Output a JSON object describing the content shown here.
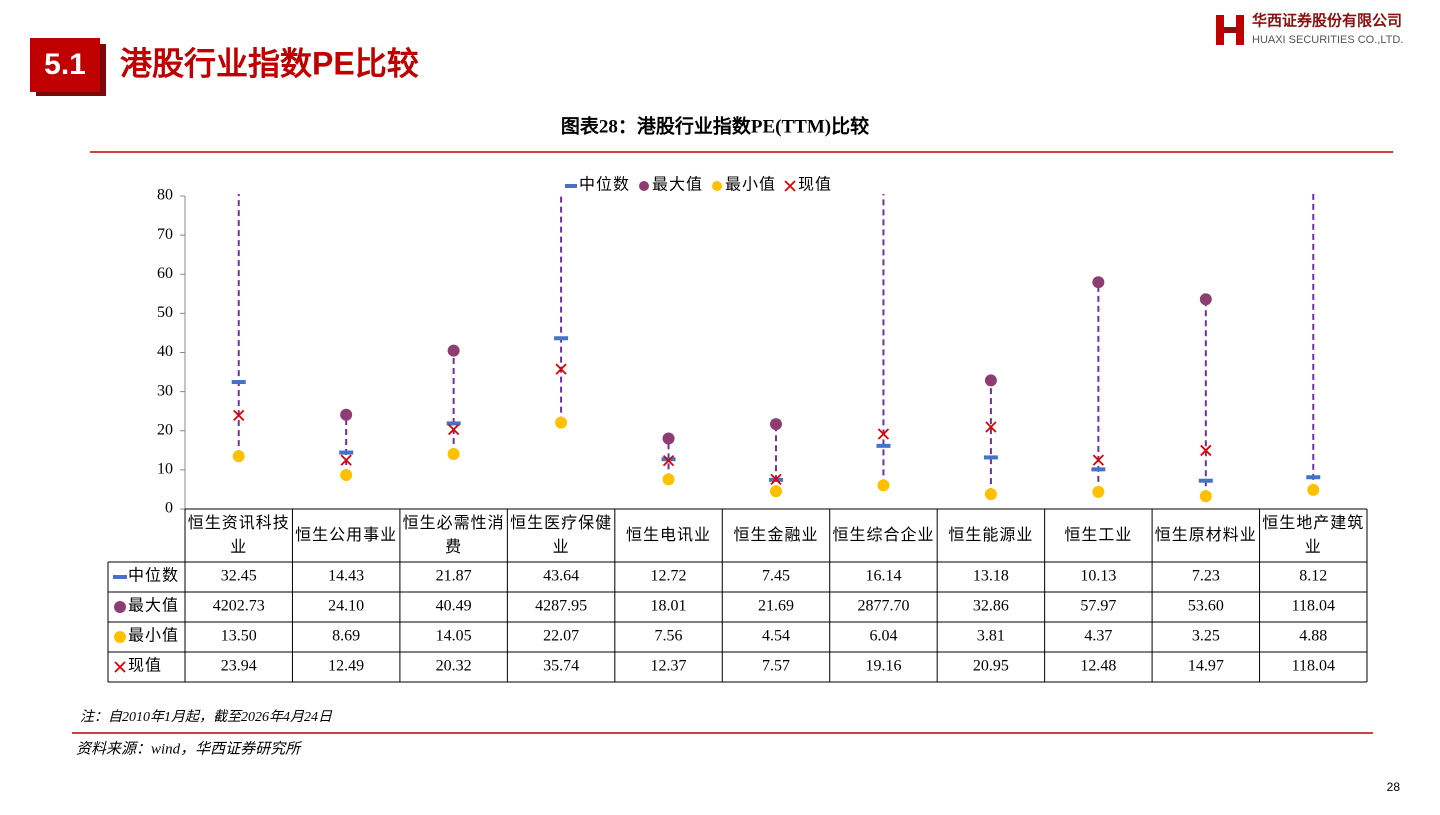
{
  "header": {
    "section": "5.1",
    "title": "港股行业指数PE比较",
    "company_cn": "华西证券股份有限公司",
    "company_en": "HUAXI SECURITIES CO.,LTD."
  },
  "chart_data": {
    "type": "range",
    "title": "图表28：港股行业指数PE(TTM)比较",
    "categories": [
      "恒生资讯科技业",
      "恒生公用事业",
      "恒生必需性消费",
      "恒生医疗保健业",
      "恒生电讯业",
      "恒生金融业",
      "恒生综合企业",
      "恒生能源业",
      "恒生工业",
      "恒生原材料业",
      "恒生地产建筑业"
    ],
    "ylim": [
      0,
      80
    ],
    "yticks": [
      0,
      10,
      20,
      30,
      40,
      50,
      60,
      70,
      80
    ],
    "range_line_color": "#7030a0",
    "series": [
      {
        "name": "中位数",
        "marker": "dash",
        "color": "#4472c4",
        "values": [
          32.45,
          14.43,
          21.87,
          43.64,
          12.72,
          7.45,
          16.14,
          13.18,
          10.13,
          7.23,
          8.12
        ],
        "value_labels": [
          "32.45",
          "14.43",
          "21.87",
          "43.64",
          "12.72",
          "7.45",
          "16.14",
          "13.18",
          "10.13",
          "7.23",
          "8.12"
        ]
      },
      {
        "name": "最大值",
        "marker": "circle",
        "color": "#8e3d72",
        "values": [
          4202.73,
          24.1,
          40.49,
          4287.95,
          18.01,
          21.69,
          2877.7,
          32.86,
          57.97,
          53.6,
          118.04
        ],
        "value_labels": [
          "4202.73",
          "24.10",
          "40.49",
          "4287.95",
          "18.01",
          "21.69",
          "2877.70",
          "32.86",
          "57.97",
          "53.60",
          "118.04"
        ]
      },
      {
        "name": "最小值",
        "marker": "circle",
        "color": "#ffc000",
        "values": [
          13.5,
          8.69,
          14.05,
          22.07,
          7.56,
          4.54,
          6.04,
          3.81,
          4.37,
          3.25,
          4.88
        ],
        "value_labels": [
          "13.50",
          "8.69",
          "14.05",
          "22.07",
          "7.56",
          "4.54",
          "6.04",
          "3.81",
          "4.37",
          "3.25",
          "4.88"
        ]
      },
      {
        "name": "现值",
        "marker": "cross",
        "color": "#e00000",
        "values": [
          23.94,
          12.49,
          20.32,
          35.74,
          12.37,
          7.57,
          19.16,
          20.95,
          12.48,
          14.97,
          118.04
        ],
        "value_labels": [
          "23.94",
          "12.49",
          "20.32",
          "35.74",
          "12.37",
          "7.57",
          "19.16",
          "20.95",
          "12.48",
          "14.97",
          "118.04"
        ]
      }
    ]
  },
  "notes": {
    "note": "注：自2010年1月起，截至2026年4月24日",
    "source": "资料来源：wind，华西证券研究所"
  },
  "page_number": "28"
}
